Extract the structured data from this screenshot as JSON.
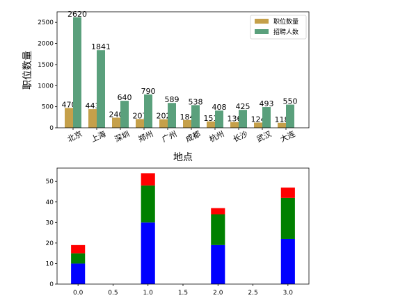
{
  "chart_data": [
    {
      "type": "bar",
      "xlabel": "地点",
      "ylabel": "职位数量",
      "ylim": [
        0,
        2750
      ],
      "yticks": [
        0,
        500,
        1000,
        1500,
        2000,
        2500
      ],
      "categories": [
        "北京",
        "上海",
        "深圳",
        "郑州",
        "广州",
        "成都",
        "杭州",
        "长沙",
        "武汉",
        "大连"
      ],
      "series": [
        {
          "name": "职位数量",
          "color": "#c5a04a",
          "values": [
            470,
            443,
            240,
            207,
            202,
            184,
            151,
            136,
            124,
            118
          ]
        },
        {
          "name": "招聘人数",
          "color": "#5aa07c",
          "values": [
            2620,
            1841,
            640,
            790,
            589,
            538,
            408,
            425,
            493,
            550
          ]
        }
      ],
      "legend": "top-right",
      "grid": false
    },
    {
      "type": "bar",
      "stacked": true,
      "xlim": [
        -0.3,
        3.3
      ],
      "xticks": [
        "0.0",
        "0.5",
        "1.0",
        "1.5",
        "2.0",
        "2.5",
        "3.0"
      ],
      "ylim": [
        0,
        56.5
      ],
      "yticks": [
        0,
        10,
        20,
        30,
        40,
        50
      ],
      "x": [
        0,
        1,
        2,
        3
      ],
      "series": [
        {
          "color": "#0000ff",
          "values": [
            10,
            30,
            19,
            22
          ]
        },
        {
          "color": "#008000",
          "values": [
            5,
            18,
            15,
            20
          ]
        },
        {
          "color": "#ff0000",
          "values": [
            4,
            6,
            3,
            5
          ]
        }
      ],
      "grid": false
    }
  ]
}
